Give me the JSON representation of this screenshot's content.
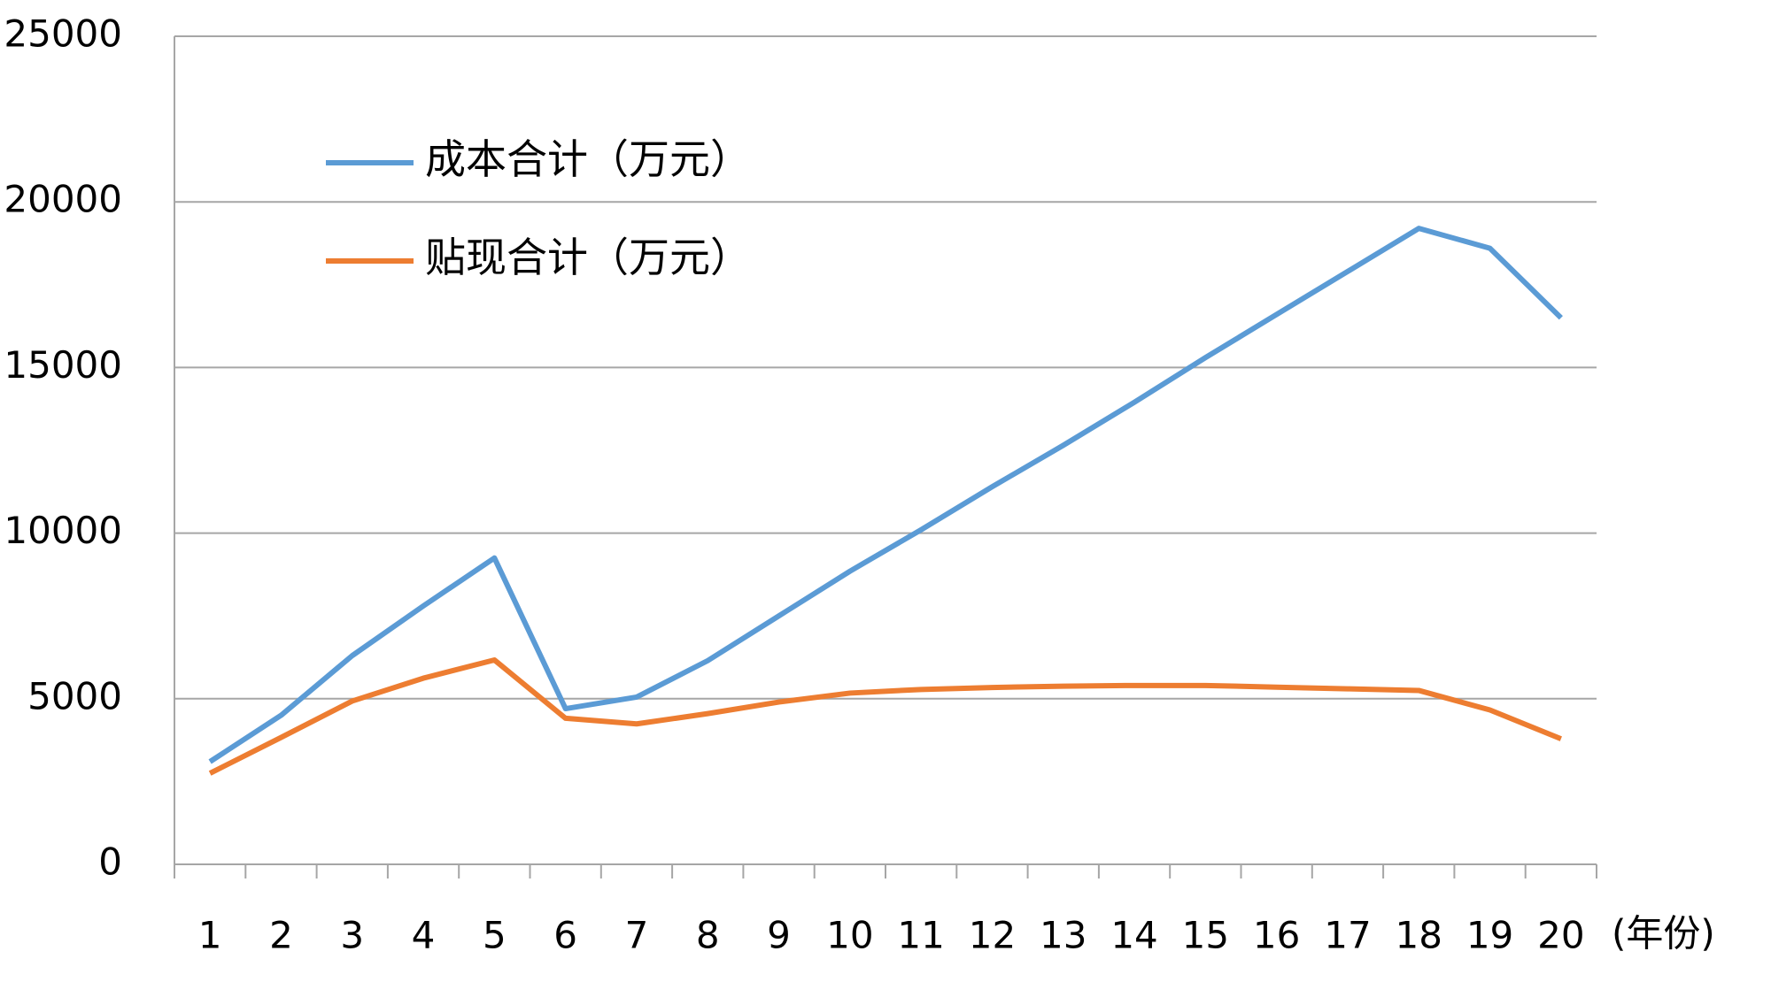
{
  "chart_data": {
    "type": "line",
    "x_label": "(年份)",
    "categories": [
      "1",
      "2",
      "3",
      "4",
      "5",
      "6",
      "7",
      "8",
      "9",
      "10",
      "11",
      "12",
      "13",
      "14",
      "15",
      "16",
      "17",
      "18",
      "19",
      "20"
    ],
    "series": [
      {
        "name": "成本合计（万元）",
        "color": "#5b9bd5",
        "values": [
          3100,
          4500,
          6300,
          7800,
          9250,
          4700,
          5050,
          6150,
          7500,
          8850,
          10100,
          11400,
          12650,
          13950,
          15300,
          16600,
          17900,
          19200,
          18600,
          16500
        ]
      },
      {
        "name": "贴现合计（万元）",
        "color": "#ed7d31",
        "values": [
          2750,
          3830,
          4930,
          5620,
          6170,
          4410,
          4240,
          4550,
          4900,
          5170,
          5280,
          5340,
          5380,
          5400,
          5400,
          5350,
          5300,
          5250,
          4660,
          3790
        ]
      }
    ],
    "ylim": [
      0,
      25000
    ],
    "yticks": [
      0,
      5000,
      10000,
      15000,
      20000,
      25000
    ],
    "grid": true,
    "legend": "upper-left"
  }
}
